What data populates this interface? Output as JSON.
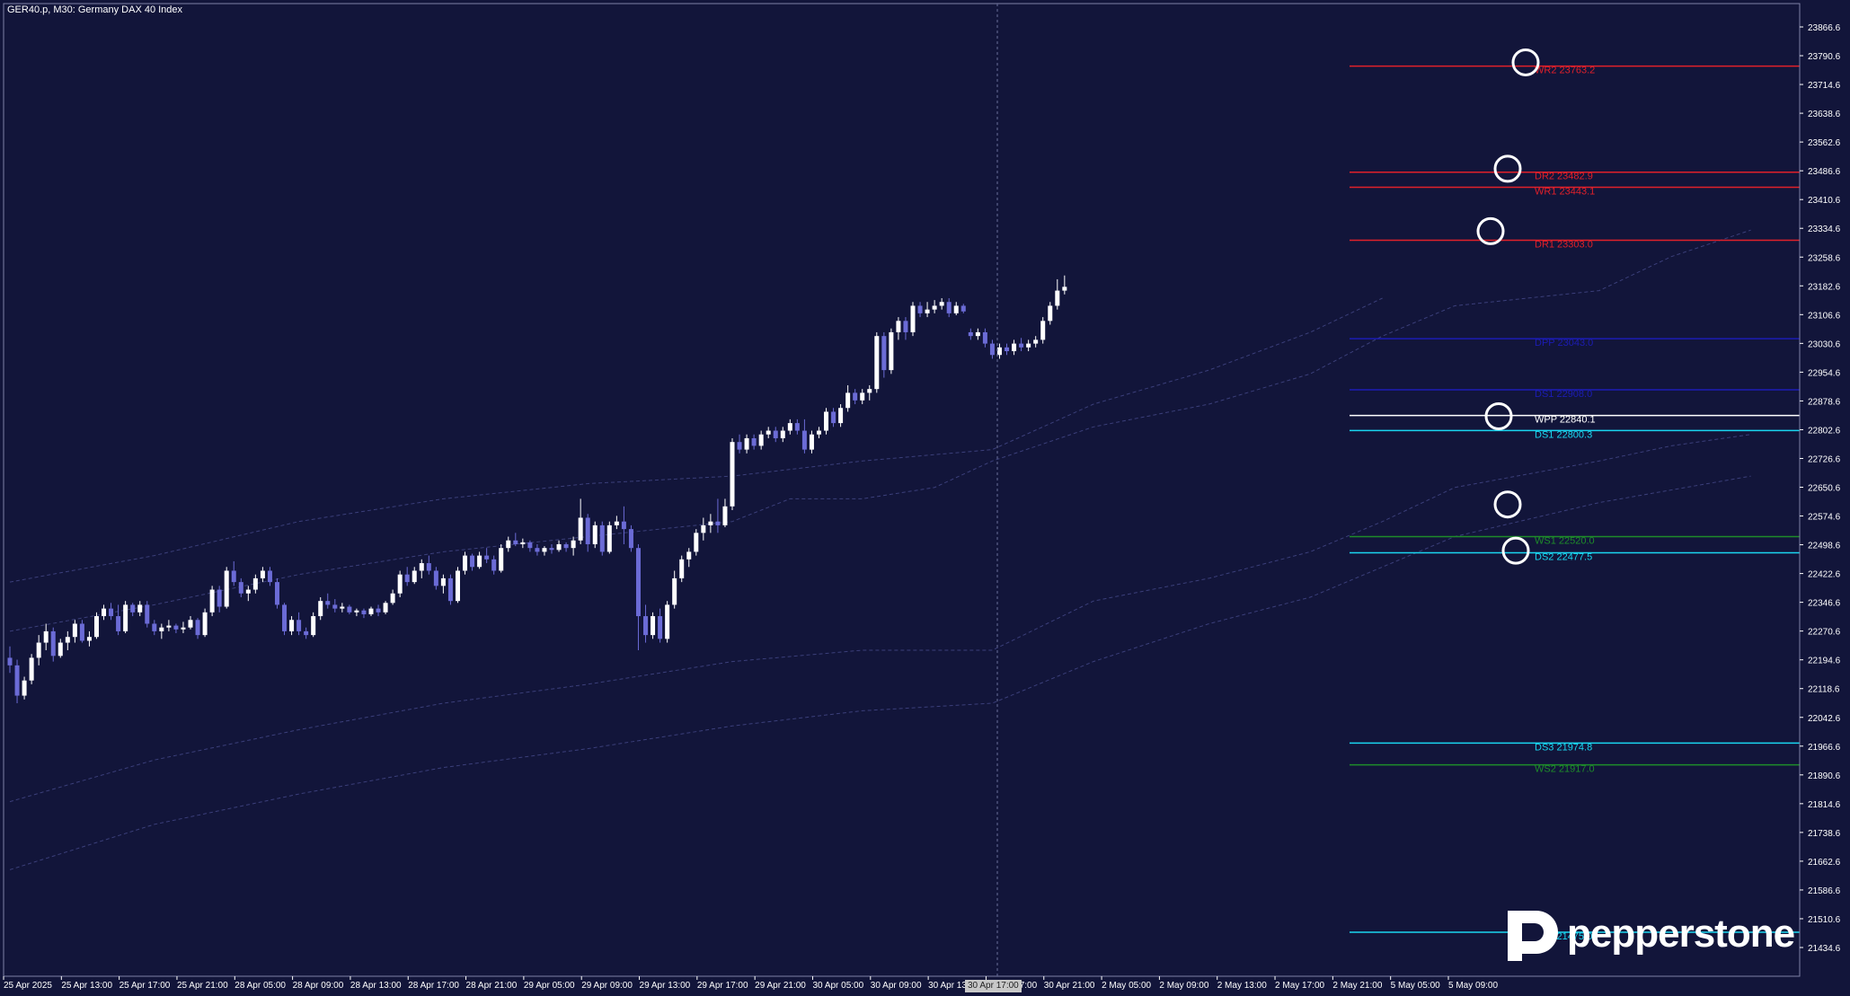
{
  "header": {
    "symbol_title": "GER40.p, M30:  Germany DAX 40 Index"
  },
  "logo": {
    "brand_text": "pepperstone"
  },
  "cursor_time_label": "30 Apr 17:00",
  "colors": {
    "background": "#12153a",
    "bull_candle": "#ffffff",
    "bear_candle": "#6b6bd6",
    "envelope": "#3b3f7a",
    "axis_text": "#ffffff",
    "crosshair": "#6a6e9a"
  },
  "chart_data": {
    "type": "candlestick",
    "symbol": "GER40.p",
    "timeframe": "M30",
    "ylim": [
      21385.0,
      23930.0
    ],
    "y_ticks": [
      "23866.6",
      "23790.6",
      "23714.6",
      "23638.6",
      "23562.6",
      "23486.6",
      "23410.6",
      "23334.6",
      "23258.6",
      "23182.6",
      "23106.6",
      "23030.6",
      "22954.6",
      "22878.6",
      "22802.6",
      "22726.6",
      "22650.6",
      "22574.6",
      "22498.6",
      "22422.6",
      "22346.6",
      "22270.6",
      "22194.6",
      "22118.6",
      "22042.6",
      "21966.6",
      "21890.6",
      "21814.6",
      "21738.6",
      "21662.6",
      "21586.6",
      "21510.6",
      "21434.6"
    ],
    "x_ticks": [
      "25 Apr 2025",
      "25 Apr 13:00",
      "25 Apr 17:00",
      "25 Apr 21:00",
      "28 Apr 05:00",
      "28 Apr 09:00",
      "28 Apr 13:00",
      "28 Apr 17:00",
      "28 Apr 21:00",
      "29 Apr 05:00",
      "29 Apr 09:00",
      "29 Apr 13:00",
      "29 Apr 17:00",
      "29 Apr 21:00",
      "30 Apr 05:00",
      "30 Apr 09:00",
      "30 Apr 13:00",
      "30 Apr 17:00",
      "30 Apr 21:00",
      "2 May 05:00",
      "2 May 09:00",
      "2 May 13:00",
      "2 May 17:00",
      "2 May 21:00",
      "5 May 05:00",
      "5 May 09:00"
    ],
    "x_tick_positions": [
      0,
      8,
      16,
      24,
      32,
      40,
      48,
      56,
      64,
      72,
      80,
      88,
      96,
      104,
      112,
      120,
      128,
      136,
      144,
      152,
      160,
      168,
      176,
      184,
      192,
      200
    ],
    "candles": [
      [
        22200,
        22230,
        22160,
        22180
      ],
      [
        22180,
        22195,
        22080,
        22100
      ],
      [
        22100,
        22150,
        22090,
        22140
      ],
      [
        22140,
        22210,
        22130,
        22200
      ],
      [
        22200,
        22260,
        22180,
        22240
      ],
      [
        22240,
        22290,
        22220,
        22270
      ],
      [
        22270,
        22280,
        22190,
        22205
      ],
      [
        22205,
        22250,
        22200,
        22240
      ],
      [
        22240,
        22270,
        22220,
        22255
      ],
      [
        22255,
        22300,
        22240,
        22290
      ],
      [
        22290,
        22300,
        22240,
        22245
      ],
      [
        22245,
        22270,
        22230,
        22255
      ],
      [
        22255,
        22320,
        22250,
        22310
      ],
      [
        22310,
        22340,
        22300,
        22330
      ],
      [
        22330,
        22345,
        22300,
        22310
      ],
      [
        22310,
        22340,
        22260,
        22270
      ],
      [
        22270,
        22350,
        22265,
        22340
      ],
      [
        22340,
        22345,
        22310,
        22320
      ],
      [
        22320,
        22350,
        22310,
        22340
      ],
      [
        22340,
        22350,
        22280,
        22290
      ],
      [
        22290,
        22300,
        22260,
        22270
      ],
      [
        22270,
        22290,
        22250,
        22280
      ],
      [
        22280,
        22300,
        22270,
        22285
      ],
      [
        22285,
        22290,
        22265,
        22275
      ],
      [
        22275,
        22295,
        22265,
        22280
      ],
      [
        22280,
        22310,
        22275,
        22300
      ],
      [
        22300,
        22305,
        22250,
        22260
      ],
      [
        22260,
        22330,
        22255,
        22320
      ],
      [
        22320,
        22390,
        22310,
        22380
      ],
      [
        22380,
        22390,
        22320,
        22335
      ],
      [
        22335,
        22440,
        22330,
        22430
      ],
      [
        22430,
        22455,
        22390,
        22400
      ],
      [
        22400,
        22410,
        22360,
        22370
      ],
      [
        22370,
        22390,
        22350,
        22380
      ],
      [
        22380,
        22420,
        22370,
        22410
      ],
      [
        22410,
        22440,
        22400,
        22430
      ],
      [
        22430,
        22440,
        22390,
        22400
      ],
      [
        22400,
        22410,
        22330,
        22340
      ],
      [
        22340,
        22345,
        22260,
        22270
      ],
      [
        22270,
        22310,
        22260,
        22300
      ],
      [
        22300,
        22320,
        22260,
        22270
      ],
      [
        22270,
        22280,
        22250,
        22260
      ],
      [
        22260,
        22320,
        22255,
        22310
      ],
      [
        22310,
        22360,
        22300,
        22350
      ],
      [
        22350,
        22370,
        22330,
        22340
      ],
      [
        22340,
        22355,
        22320,
        22330
      ],
      [
        22330,
        22345,
        22320,
        22335
      ],
      [
        22335,
        22340,
        22315,
        22320
      ],
      [
        22320,
        22330,
        22310,
        22325
      ],
      [
        22325,
        22330,
        22305,
        22315
      ],
      [
        22315,
        22335,
        22310,
        22330
      ],
      [
        22330,
        22340,
        22310,
        22320
      ],
      [
        22320,
        22350,
        22315,
        22345
      ],
      [
        22345,
        22380,
        22340,
        22370
      ],
      [
        22370,
        22430,
        22360,
        22420
      ],
      [
        22420,
        22440,
        22390,
        22400
      ],
      [
        22400,
        22440,
        22395,
        22430
      ],
      [
        22430,
        22460,
        22410,
        22450
      ],
      [
        22450,
        22470,
        22420,
        22430
      ],
      [
        22430,
        22440,
        22380,
        22390
      ],
      [
        22390,
        22420,
        22370,
        22410
      ],
      [
        22410,
        22420,
        22340,
        22350
      ],
      [
        22350,
        22440,
        22345,
        22430
      ],
      [
        22430,
        22480,
        22420,
        22470
      ],
      [
        22470,
        22475,
        22430,
        22440
      ],
      [
        22440,
        22480,
        22435,
        22470
      ],
      [
        22470,
        22490,
        22450,
        22460
      ],
      [
        22460,
        22470,
        22420,
        22430
      ],
      [
        22430,
        22500,
        22425,
        22490
      ],
      [
        22490,
        22520,
        22480,
        22510
      ],
      [
        22510,
        22530,
        22495,
        22500
      ],
      [
        22500,
        22515,
        22490,
        22505
      ],
      [
        22505,
        22510,
        22480,
        22490
      ],
      [
        22490,
        22500,
        22470,
        22480
      ],
      [
        22480,
        22495,
        22470,
        22490
      ],
      [
        22490,
        22500,
        22475,
        22485
      ],
      [
        22485,
        22510,
        22480,
        22500
      ],
      [
        22500,
        22505,
        22480,
        22490
      ],
      [
        22490,
        22520,
        22470,
        22510
      ],
      [
        22510,
        22620,
        22500,
        22570
      ],
      [
        22570,
        22580,
        22480,
        22500
      ],
      [
        22500,
        22560,
        22490,
        22550
      ],
      [
        22550,
        22560,
        22470,
        22480
      ],
      [
        22480,
        22560,
        22475,
        22550
      ],
      [
        22550,
        22575,
        22540,
        22560
      ],
      [
        22560,
        22600,
        22500,
        22540
      ],
      [
        22540,
        22550,
        22480,
        22490
      ],
      [
        22490,
        22500,
        22220,
        22310
      ],
      [
        22310,
        22340,
        22240,
        22260
      ],
      [
        22260,
        22320,
        22250,
        22310
      ],
      [
        22310,
        22330,
        22240,
        22250
      ],
      [
        22250,
        22350,
        22240,
        22340
      ],
      [
        22340,
        22430,
        22330,
        22410
      ],
      [
        22410,
        22470,
        22400,
        22460
      ],
      [
        22460,
        22490,
        22440,
        22480
      ],
      [
        22480,
        22540,
        22470,
        22530
      ],
      [
        22530,
        22570,
        22510,
        22550
      ],
      [
        22550,
        22580,
        22530,
        22560
      ],
      [
        22560,
        22620,
        22530,
        22550
      ],
      [
        22550,
        22620,
        22545,
        22600
      ],
      [
        22600,
        22780,
        22590,
        22770
      ],
      [
        22770,
        22790,
        22740,
        22750
      ],
      [
        22750,
        22790,
        22740,
        22780
      ],
      [
        22780,
        22790,
        22750,
        22760
      ],
      [
        22760,
        22800,
        22750,
        22790
      ],
      [
        22790,
        22810,
        22780,
        22800
      ],
      [
        22800,
        22810,
        22770,
        22780
      ],
      [
        22780,
        22810,
        22770,
        22800
      ],
      [
        22800,
        22830,
        22790,
        22820
      ],
      [
        22820,
        22830,
        22790,
        22800
      ],
      [
        22800,
        22830,
        22740,
        22750
      ],
      [
        22750,
        22800,
        22740,
        22790
      ],
      [
        22790,
        22810,
        22780,
        22800
      ],
      [
        22800,
        22860,
        22790,
        22850
      ],
      [
        22850,
        22860,
        22810,
        22820
      ],
      [
        22820,
        22870,
        22810,
        22860
      ],
      [
        22860,
        22920,
        22850,
        22900
      ],
      [
        22900,
        22910,
        22870,
        22880
      ],
      [
        22880,
        22910,
        22870,
        22900
      ],
      [
        22900,
        22920,
        22880,
        22910
      ],
      [
        22910,
        23060,
        22900,
        23050
      ],
      [
        23050,
        23060,
        22940,
        22960
      ],
      [
        22960,
        23070,
        22950,
        23060
      ],
      [
        23060,
        23100,
        23040,
        23090
      ],
      [
        23090,
        23100,
        23040,
        23060
      ],
      [
        23060,
        23140,
        23050,
        23130
      ],
      [
        23130,
        23140,
        23100,
        23110
      ],
      [
        23110,
        23140,
        23100,
        23120
      ],
      [
        23120,
        23145,
        23110,
        23130
      ],
      [
        23130,
        23150,
        23120,
        23140
      ],
      [
        23140,
        23150,
        23100,
        23110
      ],
      [
        23110,
        23140,
        23105,
        23130
      ],
      [
        23130,
        23135,
        23110,
        23115
      ],
      [
        23060,
        23070,
        23040,
        23050
      ],
      [
        23050,
        23070,
        23040,
        23060
      ],
      [
        23060,
        23070,
        23020,
        23030
      ],
      [
        23030,
        23040,
        22990,
        23000
      ],
      [
        23000,
        23030,
        22990,
        23020
      ],
      [
        23020,
        23030,
        23000,
        23010
      ],
      [
        23010,
        23040,
        23000,
        23030
      ],
      [
        23030,
        23045,
        23010,
        23020
      ],
      [
        23020,
        23040,
        23010,
        23030
      ],
      [
        23030,
        23050,
        23020,
        23040
      ],
      [
        23040,
        23100,
        23030,
        23090
      ],
      [
        23090,
        23140,
        23080,
        23130
      ],
      [
        23130,
        23200,
        23120,
        23170
      ],
      [
        23170,
        23210,
        23160,
        23180
      ]
    ],
    "envelope": {
      "upper": [
        [
          0,
          22270
        ],
        [
          20,
          22340
        ],
        [
          40,
          22420
        ],
        [
          60,
          22480
        ],
        [
          80,
          22520
        ],
        [
          100,
          22560
        ],
        [
          108,
          22620
        ],
        [
          118,
          22620
        ],
        [
          128,
          22650
        ],
        [
          136,
          22720
        ],
        [
          150,
          22810
        ],
        [
          166,
          22870
        ],
        [
          180,
          22950
        ],
        [
          190,
          23050
        ],
        [
          200,
          23130
        ],
        [
          220,
          23170
        ],
        [
          230,
          23260
        ],
        [
          241,
          23330
        ]
      ],
      "lower": [
        [
          0,
          21820
        ],
        [
          20,
          21930
        ],
        [
          40,
          22010
        ],
        [
          60,
          22080
        ],
        [
          80,
          22130
        ],
        [
          100,
          22190
        ],
        [
          118,
          22220
        ],
        [
          136,
          22220
        ],
        [
          150,
          22350
        ],
        [
          166,
          22410
        ],
        [
          180,
          22480
        ],
        [
          190,
          22560
        ],
        [
          200,
          22650
        ],
        [
          220,
          22720
        ],
        [
          230,
          22760
        ],
        [
          241,
          22790
        ]
      ],
      "outer_upper": [
        [
          0,
          22400
        ],
        [
          20,
          22470
        ],
        [
          40,
          22560
        ],
        [
          60,
          22620
        ],
        [
          80,
          22660
        ],
        [
          100,
          22680
        ],
        [
          118,
          22720
        ],
        [
          136,
          22750
        ],
        [
          150,
          22870
        ],
        [
          166,
          22960
        ],
        [
          180,
          23060
        ],
        [
          190,
          23150
        ]
      ],
      "outer_lower": [
        [
          0,
          21640
        ],
        [
          20,
          21760
        ],
        [
          40,
          21840
        ],
        [
          60,
          21910
        ],
        [
          80,
          21960
        ],
        [
          100,
          22020
        ],
        [
          118,
          22060
        ],
        [
          136,
          22080
        ],
        [
          150,
          22190
        ],
        [
          166,
          22290
        ],
        [
          180,
          22360
        ],
        [
          190,
          22440
        ],
        [
          200,
          22520
        ],
        [
          220,
          22610
        ],
        [
          241,
          22680
        ]
      ]
    },
    "pivot_levels": [
      {
        "label": "WR2 23763.2",
        "value": 23763.2,
        "color": "#e0202a"
      },
      {
        "label": "DR2 23482.9",
        "value": 23482.9,
        "color": "#e0202a"
      },
      {
        "label": "WR1 23443.1",
        "value": 23443.1,
        "color": "#e0202a"
      },
      {
        "label": "DR1 23303.0",
        "value": 23303.0,
        "color": "#e0202a"
      },
      {
        "label": "DPP 23043.0",
        "value": 23043.0,
        "color": "#1c1cb4"
      },
      {
        "label": "DS1 22908.0",
        "value": 22908.0,
        "color": "#1c1cb4"
      },
      {
        "label": "WPP 22840.1",
        "value": 22840.1,
        "color": "#ffffff"
      },
      {
        "label": "DS1 22800.3",
        "value": 22800.3,
        "color": "#1ad6f0"
      },
      {
        "label": "WS1 22520.0",
        "value": 22520.0,
        "color": "#1e8c2a"
      },
      {
        "label": "DS2 22477.5",
        "value": 22477.5,
        "color": "#1ad6f0"
      },
      {
        "label": "DS3 21974.8",
        "value": 21974.8,
        "color": "#1ad6f0"
      },
      {
        "label": "WS2 21917.0",
        "value": 21917.0,
        "color": "#1e8c2a"
      },
      {
        "label": "DS4 21475.0",
        "value": 21475.0,
        "color": "#1ad6f0"
      }
    ],
    "marker_circles": [
      23773.0,
      23492.0,
      23327.0,
      22838.0,
      22605.0,
      22483.0
    ],
    "grid": false
  }
}
